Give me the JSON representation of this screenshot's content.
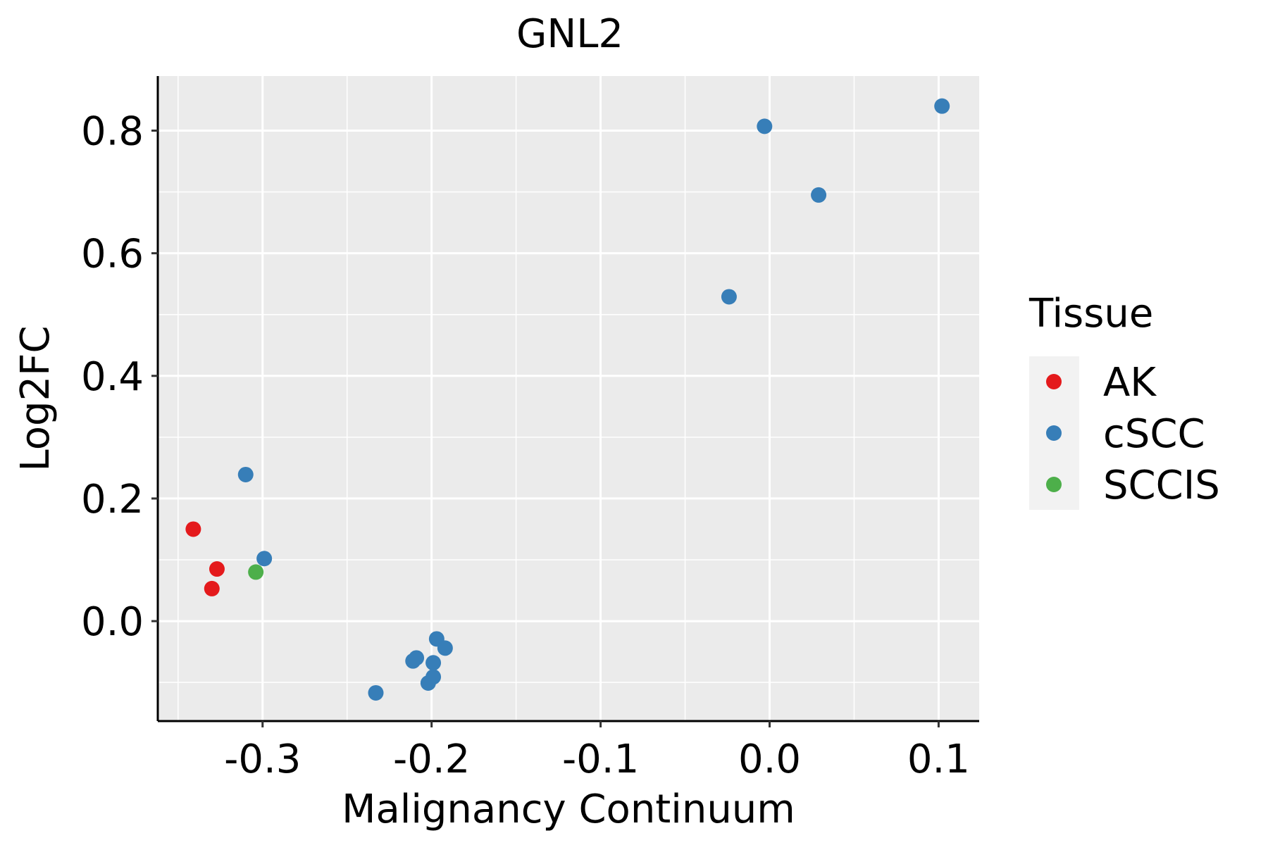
{
  "chart_data": {
    "type": "scatter",
    "title": "GNL2",
    "xlabel": "Malignancy Continuum",
    "ylabel": "Log2FC",
    "xlim": [
      -0.362,
      0.124
    ],
    "ylim": [
      -0.163,
      0.889
    ],
    "x_ticks": [
      -0.3,
      -0.2,
      -0.1,
      0.0,
      0.1
    ],
    "x_tick_labels": [
      "-0.3",
      "-0.2",
      "-0.1",
      "0.0",
      "0.1"
    ],
    "y_ticks": [
      0.0,
      0.2,
      0.4,
      0.6,
      0.8
    ],
    "y_tick_labels": [
      "0.0",
      "0.2",
      "0.4",
      "0.6",
      "0.8"
    ],
    "grid": true,
    "legend": {
      "title": "Tissue",
      "position": "right",
      "entries": [
        {
          "label": "AK",
          "color": "#E41A1C"
        },
        {
          "label": "cSCC",
          "color": "#377EB8"
        },
        {
          "label": "SCCIS",
          "color": "#4DAF4A"
        }
      ]
    },
    "series": [
      {
        "name": "AK",
        "color": "#E41A1C",
        "points": [
          {
            "x": -0.341,
            "y": 0.15
          },
          {
            "x": -0.327,
            "y": 0.085
          },
          {
            "x": -0.33,
            "y": 0.053
          }
        ]
      },
      {
        "name": "cSCC",
        "color": "#377EB8",
        "points": [
          {
            "x": -0.31,
            "y": 0.239
          },
          {
            "x": -0.299,
            "y": 0.102
          },
          {
            "x": -0.233,
            "y": -0.117
          },
          {
            "x": -0.211,
            "y": -0.065
          },
          {
            "x": -0.209,
            "y": -0.06
          },
          {
            "x": -0.202,
            "y": -0.101
          },
          {
            "x": -0.199,
            "y": -0.091
          },
          {
            "x": -0.199,
            "y": -0.068
          },
          {
            "x": -0.197,
            "y": -0.029
          },
          {
            "x": -0.192,
            "y": -0.044
          },
          {
            "x": -0.024,
            "y": 0.529
          },
          {
            "x": -0.003,
            "y": 0.807
          },
          {
            "x": 0.029,
            "y": 0.695
          },
          {
            "x": 0.102,
            "y": 0.84
          }
        ]
      },
      {
        "name": "SCCIS",
        "color": "#4DAF4A",
        "points": [
          {
            "x": -0.304,
            "y": 0.08
          }
        ]
      }
    ]
  }
}
